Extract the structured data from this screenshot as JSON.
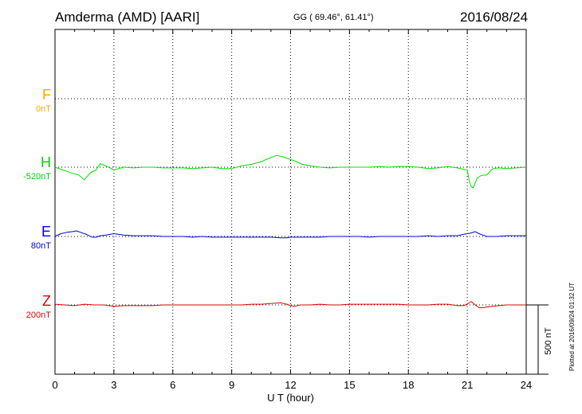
{
  "header": {
    "station": "Amderma (AMD)  [AARI]",
    "coords": "GG ( 69.46°,  61.41°)",
    "date": "2016/08/24"
  },
  "plotted_note": "Plotted at 2016/09/24 01:32 UT",
  "colors": {
    "F": "#ffa500",
    "H": "#00e000",
    "E": "#0000e0",
    "Z": "#e00000",
    "axis": "#000000"
  },
  "chart_data": {
    "type": "line",
    "title": "",
    "xlabel": "U T (hour)",
    "xlim": [
      0,
      24
    ],
    "xticks": [
      0,
      3,
      6,
      9,
      12,
      15,
      18,
      21,
      24
    ],
    "scale_bar": {
      "label": "500 nT",
      "value_nT": 500
    },
    "channels": [
      {
        "name": "F",
        "baseline": "0nT",
        "values": []
      },
      {
        "name": "H",
        "baseline": "-520nT",
        "x": [
          0,
          0.3,
          0.6,
          0.9,
          1.2,
          1.5,
          1.8,
          2.1,
          2.3,
          2.6,
          3,
          3.5,
          4,
          4.5,
          5,
          5.5,
          6,
          6.5,
          7,
          7.5,
          8,
          8.5,
          9,
          9.5,
          10,
          10.5,
          11,
          11.3,
          11.6,
          12,
          12.3,
          12.6,
          13,
          13.5,
          14,
          14.5,
          15,
          15.5,
          16,
          16.5,
          17,
          17.5,
          18,
          18.5,
          19,
          19.5,
          20,
          20.5,
          20.8,
          21,
          21.1,
          21.2,
          21.3,
          21.5,
          21.7,
          22,
          22.3,
          22.6,
          23,
          23.5,
          24
        ],
        "values": [
          0,
          -15,
          -30,
          -45,
          -55,
          -90,
          -40,
          -20,
          25,
          10,
          -20,
          0,
          -5,
          0,
          0,
          -5,
          -5,
          -5,
          -10,
          -5,
          0,
          -10,
          -10,
          10,
          20,
          40,
          70,
          85,
          75,
          55,
          40,
          20,
          10,
          0,
          -5,
          0,
          0,
          0,
          0,
          5,
          0,
          5,
          5,
          0,
          -10,
          -5,
          5,
          -5,
          -15,
          -20,
          -100,
          -140,
          -150,
          -80,
          -60,
          -55,
          -10,
          -5,
          -10,
          -5,
          0
        ]
      },
      {
        "name": "E",
        "baseline": "80nT",
        "x": [
          0,
          0.3,
          0.6,
          0.9,
          1.1,
          1.3,
          1.6,
          1.9,
          2.1,
          2.3,
          2.6,
          3,
          3.5,
          4,
          4.5,
          5,
          5.5,
          6,
          6.5,
          7,
          7.5,
          8,
          8.5,
          9,
          9.5,
          10,
          10.5,
          11,
          11.5,
          11.8,
          12,
          12.5,
          13,
          13.5,
          14,
          14.5,
          15,
          15.5,
          16,
          16.5,
          17,
          17.5,
          18,
          18.5,
          19,
          19.5,
          20,
          20.5,
          20.8,
          21,
          21.2,
          21.4,
          21.6,
          21.8,
          22,
          22.5,
          23,
          23.5,
          24
        ],
        "values": [
          0,
          20,
          30,
          35,
          40,
          30,
          15,
          -5,
          -5,
          5,
          10,
          20,
          10,
          5,
          5,
          5,
          0,
          0,
          0,
          -5,
          0,
          -5,
          -5,
          -5,
          -5,
          -5,
          -5,
          -5,
          -10,
          -10,
          -5,
          -5,
          -5,
          -5,
          0,
          0,
          0,
          0,
          -5,
          0,
          0,
          0,
          0,
          0,
          5,
          0,
          5,
          5,
          15,
          20,
          25,
          35,
          20,
          10,
          0,
          0,
          5,
          5,
          5
        ]
      },
      {
        "name": "Z",
        "baseline": "200nT",
        "x": [
          0,
          0.5,
          1,
          1.5,
          2,
          2.5,
          3,
          3.5,
          4,
          4.5,
          5,
          5.5,
          6,
          6.5,
          7,
          7.5,
          8,
          8.5,
          9,
          9.5,
          10,
          10.5,
          11,
          11.5,
          11.8,
          12,
          12.2,
          12.5,
          13,
          13.5,
          14,
          14.5,
          15,
          15.5,
          16,
          16.5,
          17,
          17.5,
          18,
          18.5,
          19,
          19.5,
          20,
          20.5,
          20.8,
          21,
          21.2,
          21.4,
          21.6,
          21.8,
          22,
          22.3,
          22.6,
          23,
          23.5,
          24
        ],
        "values": [
          5,
          0,
          -5,
          5,
          0,
          0,
          -10,
          -5,
          -5,
          -5,
          -5,
          0,
          0,
          0,
          0,
          0,
          0,
          0,
          0,
          0,
          5,
          5,
          10,
          15,
          5,
          -5,
          -10,
          0,
          0,
          5,
          0,
          0,
          5,
          5,
          5,
          5,
          5,
          5,
          0,
          0,
          0,
          5,
          5,
          -5,
          -5,
          5,
          25,
          0,
          -20,
          -20,
          -15,
          -10,
          -5,
          0,
          0,
          0
        ]
      }
    ],
    "grid": true
  }
}
